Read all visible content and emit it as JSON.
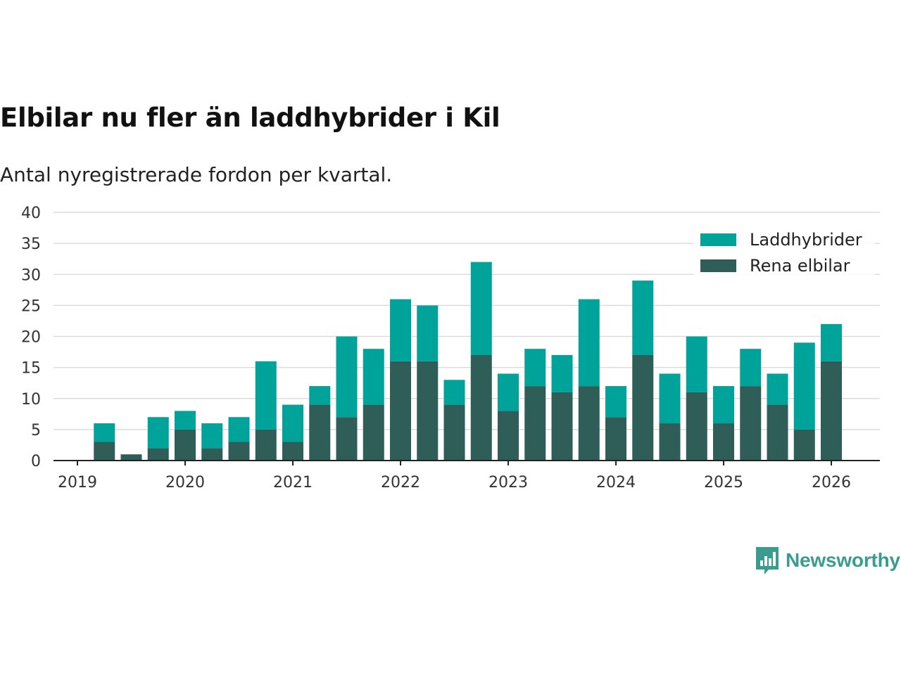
{
  "header": {
    "title": "Elbilar nu fler än laddhybrider i Kil",
    "subtitle": "Antal nyregistrerade fordon per kvartal."
  },
  "brand": {
    "name": "Newsworthy",
    "color": "#3a9b8f"
  },
  "chart_data": {
    "type": "bar",
    "stacked": true,
    "title": "Elbilar nu fler än laddhybrider i Kil",
    "subtitle": "Antal nyregistrerade fordon per kvartal.",
    "xlabel": "",
    "ylabel": "",
    "ylim": [
      0,
      40
    ],
    "yticks": [
      0,
      5,
      10,
      15,
      20,
      25,
      30,
      35,
      40
    ],
    "x_start": 2019.0,
    "x_end": 2026.46,
    "xticks": [
      "2019",
      "2020",
      "2021",
      "2022",
      "2023",
      "2024",
      "2025",
      "2026"
    ],
    "categories": [
      "2019 Q2",
      "2019 Q3",
      "2019 Q4",
      "2020 Q1",
      "2020 Q2",
      "2020 Q3",
      "2020 Q4",
      "2021 Q1",
      "2021 Q2",
      "2021 Q3",
      "2021 Q4",
      "2022 Q1",
      "2022 Q2",
      "2022 Q3",
      "2022 Q4",
      "2023 Q1",
      "2023 Q2",
      "2023 Q3",
      "2023 Q4",
      "2024 Q1",
      "2024 Q2",
      "2024 Q3",
      "2024 Q4",
      "2025 Q1",
      "2025 Q2",
      "2025 Q3",
      "2025 Q4",
      "2026 Q1"
    ],
    "grid": true,
    "legend_position": "top-right",
    "series": [
      {
        "name": "Rena elbilar",
        "color": "#2f5e58",
        "values": [
          3,
          1,
          2,
          5,
          2,
          3,
          5,
          3,
          9,
          7,
          9,
          16,
          16,
          9,
          17,
          8,
          12,
          11,
          12,
          7,
          17,
          6,
          11,
          6,
          12,
          9,
          5,
          16
        ]
      },
      {
        "name": "Laddhybrider",
        "color": "#00a39a",
        "values": [
          3,
          0,
          5,
          3,
          4,
          4,
          11,
          6,
          3,
          13,
          9,
          10,
          9,
          4,
          15,
          6,
          6,
          6,
          14,
          5,
          12,
          8,
          9,
          6,
          6,
          5,
          14,
          6
        ]
      }
    ]
  }
}
